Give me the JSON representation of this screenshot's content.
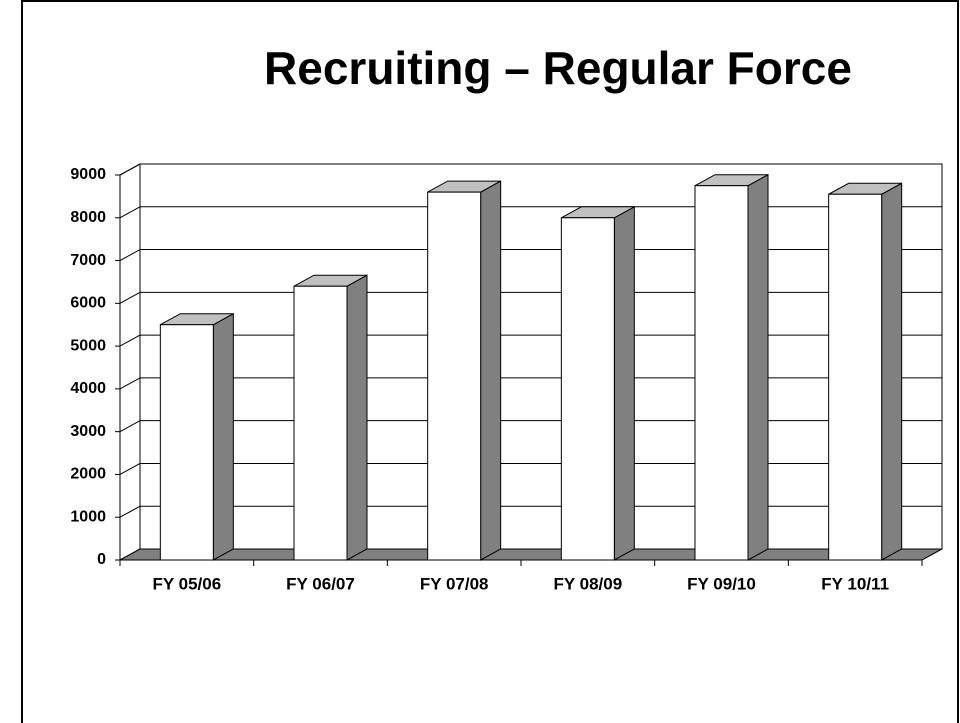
{
  "chart_data": {
    "type": "bar",
    "title": "Recruiting – Regular Force",
    "categories": [
      "FY 05/06",
      "FY 06/07",
      "FY 07/08",
      "FY 08/09",
      "FY 09/10",
      "FY 10/11"
    ],
    "values": [
      5500,
      6400,
      8600,
      8000,
      8750,
      8550
    ],
    "color": "#ffffff",
    "top_color": "#c0c0c0",
    "side_color": "#808080",
    "floor_color": "#808080",
    "ylim": [
      0,
      9000
    ],
    "yticks": [
      0,
      1000,
      2000,
      3000,
      4000,
      5000,
      6000,
      7000,
      8000,
      9000
    ],
    "grid": true
  }
}
